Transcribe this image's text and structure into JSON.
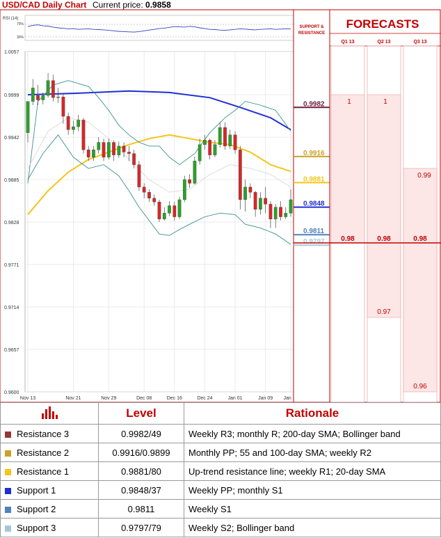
{
  "header": {
    "title": "USD/CAD Daily Chart",
    "price_label": "Current price:",
    "price_value": "0.9858"
  },
  "chart_data": {
    "type": "candlestick",
    "title": "USD/CAD Daily Chart",
    "ylim": [
      0.96,
      1.0057
    ],
    "y_ticks": [
      "1.0057",
      "0.9999",
      "0.9942",
      "0.9885",
      "0.9828",
      "0.9771",
      "0.9714",
      "0.9657",
      "0.9600"
    ],
    "x_ticks": [
      "Nov 13",
      "Nov 21",
      "Nov 29",
      "Dec 08",
      "Dec 16",
      "Dec 24",
      "Jan 01",
      "Jan 09",
      "Jan 17"
    ],
    "grid": true,
    "rsi": {
      "label": "RSI (14)",
      "levels": [
        "70%",
        "30%"
      ]
    },
    "candles": [
      [
        0.9948,
        0.999,
        0.9975,
        0.9935
      ],
      [
        0.999,
        1.0008,
        1.002,
        0.9985
      ],
      [
        0.9998,
        0.9992,
        1.0012,
        0.9985
      ],
      [
        0.9992,
        0.9998,
        1.0002,
        0.9986
      ],
      [
        0.9998,
        1.0018,
        1.0028,
        0.9995
      ],
      [
        1.0018,
        0.9995,
        1.0026,
        0.999
      ],
      [
        0.9995,
        0.9996,
        1.0008,
        0.9988
      ],
      [
        0.9996,
        0.997,
        1.0,
        0.996
      ],
      [
        0.997,
        0.9952,
        0.9975,
        0.9945
      ],
      [
        0.9952,
        0.9956,
        0.9964,
        0.9946
      ],
      [
        0.9956,
        0.9965,
        0.9972,
        0.995
      ],
      [
        0.9965,
        0.9925,
        0.9968,
        0.992
      ],
      [
        0.9925,
        0.9915,
        0.993,
        0.991
      ],
      [
        0.9915,
        0.9925,
        0.993,
        0.991
      ],
      [
        0.9925,
        0.9935,
        0.9942,
        0.992
      ],
      [
        0.9935,
        0.9915,
        0.994,
        0.991
      ],
      [
        0.9915,
        0.9935,
        0.994,
        0.9912
      ],
      [
        0.9935,
        0.9918,
        0.9938,
        0.991
      ],
      [
        0.9918,
        0.993,
        0.9936,
        0.9914
      ],
      [
        0.993,
        0.9922,
        0.9935,
        0.9915
      ],
      [
        0.9922,
        0.992,
        0.993,
        0.991
      ],
      [
        0.992,
        0.9905,
        0.9925,
        0.99
      ],
      [
        0.9905,
        0.9875,
        0.991,
        0.987
      ],
      [
        0.9875,
        0.9868,
        0.988,
        0.986
      ],
      [
        0.9868,
        0.986,
        0.9872,
        0.9855
      ],
      [
        0.986,
        0.9855,
        0.9865,
        0.985
      ],
      [
        0.9855,
        0.9832,
        0.9858,
        0.9828
      ],
      [
        0.9832,
        0.984,
        0.9848,
        0.983
      ],
      [
        0.984,
        0.985,
        0.9856,
        0.9836
      ],
      [
        0.985,
        0.9835,
        0.9855,
        0.983
      ],
      [
        0.9835,
        0.9858,
        0.9862,
        0.9832
      ],
      [
        0.9858,
        0.9885,
        0.989,
        0.9855
      ],
      [
        0.9885,
        0.988,
        0.9892,
        0.9874
      ],
      [
        0.988,
        0.991,
        0.9916,
        0.9878
      ],
      [
        0.991,
        0.9932,
        0.994,
        0.9905
      ],
      [
        0.9932,
        0.9938,
        0.9945,
        0.9925
      ],
      [
        0.9938,
        0.9918,
        0.994,
        0.9912
      ],
      [
        0.9918,
        0.9932,
        0.9938,
        0.9915
      ],
      [
        0.9932,
        0.9955,
        0.9962,
        0.9928
      ],
      [
        0.9955,
        0.993,
        0.9962,
        0.9925
      ],
      [
        0.993,
        0.9945,
        0.9952,
        0.9926
      ],
      [
        0.9945,
        0.9925,
        0.995,
        0.992
      ],
      [
        0.9925,
        0.9858,
        0.993,
        0.9845
      ],
      [
        0.9858,
        0.9875,
        0.9885,
        0.9842
      ],
      [
        0.9875,
        0.9868,
        0.988,
        0.986
      ],
      [
        0.9868,
        0.9845,
        0.987,
        0.9835
      ],
      [
        0.9845,
        0.986,
        0.9868,
        0.9838
      ],
      [
        0.986,
        0.9852,
        0.9875,
        0.984
      ],
      [
        0.9852,
        0.9832,
        0.9856,
        0.982
      ],
      [
        0.9832,
        0.9848,
        0.9852,
        0.982
      ],
      [
        0.9848,
        0.9835,
        0.9856,
        0.983
      ],
      [
        0.9835,
        0.984,
        0.9848,
        0.9832
      ],
      [
        0.984,
        0.9858,
        0.9872,
        0.9835
      ]
    ],
    "indicator_lines": [
      {
        "name": "200-day SMA",
        "color": "#1f2fd0",
        "points": [
          [
            0,
            0.9999
          ],
          [
            10,
            1.0001
          ],
          [
            20,
            1.0004
          ],
          [
            28,
            1.0002
          ],
          [
            36,
            0.9995
          ],
          [
            42,
            0.9982
          ],
          [
            48,
            0.9968
          ],
          [
            52,
            0.9952
          ]
        ]
      },
      {
        "name": "55-day SMA",
        "color": "#f5c518",
        "points": [
          [
            0,
            0.9838
          ],
          [
            4,
            0.987
          ],
          [
            8,
            0.9895
          ],
          [
            12,
            0.9912
          ],
          [
            16,
            0.9922
          ],
          [
            20,
            0.9932
          ],
          [
            24,
            0.994
          ],
          [
            28,
            0.9945
          ],
          [
            32,
            0.994
          ],
          [
            36,
            0.9935
          ],
          [
            40,
            0.9932
          ],
          [
            44,
            0.9922
          ],
          [
            48,
            0.9905
          ],
          [
            52,
            0.9896
          ]
        ]
      },
      {
        "name": "Bollinger upper",
        "color": "#3a8f8f",
        "points": [
          [
            0,
            0.988
          ],
          [
            2,
            0.999
          ],
          [
            5,
            1.0012
          ],
          [
            8,
            1.0018
          ],
          [
            12,
            1.001
          ],
          [
            14,
            0.9995
          ],
          [
            16,
            0.9978
          ],
          [
            18,
            0.9958
          ],
          [
            20,
            0.9945
          ],
          [
            22,
            0.9935
          ],
          [
            24,
            0.993
          ],
          [
            26,
            0.993
          ],
          [
            28,
            0.9915
          ],
          [
            30,
            0.9905
          ],
          [
            33,
            0.992
          ],
          [
            36,
            0.9948
          ],
          [
            39,
            0.9968
          ],
          [
            41,
            0.9978
          ],
          [
            43,
            0.999
          ],
          [
            46,
            0.9985
          ],
          [
            49,
            0.9978
          ],
          [
            52,
            0.995
          ]
        ]
      },
      {
        "name": "Bollinger lower",
        "color": "#3a8f8f",
        "points": [
          [
            0,
            0.9885
          ],
          [
            3,
            0.992
          ],
          [
            6,
            0.9945
          ],
          [
            9,
            0.9915
          ],
          [
            12,
            0.99
          ],
          [
            15,
            0.9905
          ],
          [
            18,
            0.989
          ],
          [
            20,
            0.987
          ],
          [
            22,
            0.9848
          ],
          [
            24,
            0.983
          ],
          [
            26,
            0.9812
          ],
          [
            28,
            0.981
          ],
          [
            30,
            0.9818
          ],
          [
            32,
            0.9825
          ],
          [
            35,
            0.9835
          ],
          [
            38,
            0.984
          ],
          [
            41,
            0.9838
          ],
          [
            43,
            0.9825
          ],
          [
            46,
            0.982
          ],
          [
            49,
            0.9812
          ],
          [
            52,
            0.9798
          ]
        ]
      },
      {
        "name": "Bollinger middle",
        "color": "#d9d9d9",
        "points": [
          [
            0,
            0.99
          ],
          [
            4,
            0.995
          ],
          [
            8,
            0.9968
          ],
          [
            12,
            0.9962
          ],
          [
            16,
            0.994
          ],
          [
            20,
            0.9912
          ],
          [
            24,
            0.9885
          ],
          [
            28,
            0.9868
          ],
          [
            32,
            0.9872
          ],
          [
            36,
            0.9892
          ],
          [
            40,
            0.9905
          ],
          [
            44,
            0.99
          ],
          [
            48,
            0.9892
          ],
          [
            52,
            0.9875
          ]
        ]
      }
    ],
    "price_levels": [
      {
        "value": 0.9982,
        "label": "0.9982",
        "color": "#6d1f3c"
      },
      {
        "value": 0.9916,
        "label": "0.9916",
        "color": "#c9a227"
      },
      {
        "value": 0.9881,
        "label": "0.9881",
        "color": "#f5c518"
      },
      {
        "value": 0.9848,
        "label": "0.9848",
        "color": "#1f2fd0"
      },
      {
        "value": 0.9811,
        "label": "0.9811",
        "color": "#4f81bd"
      },
      {
        "value": 0.9797,
        "label": "0.9797",
        "color": "#a6c8d6"
      }
    ],
    "support_resistance_header": [
      "SUPPORT &",
      "RESISTANCE"
    ],
    "forecasts": {
      "title": "FORECASTS",
      "quarters": [
        {
          "label": "Q1 13",
          "value": 0.9999,
          "above": "1",
          "below": "0.98",
          "low": 0.98
        },
        {
          "label": "Q2 13",
          "value": 0.9999,
          "above": "1",
          "below": "0.98",
          "low": 0.98,
          "min_label": "0.97",
          "min": 0.97
        },
        {
          "label": "Q3 13",
          "above": "0.99",
          "high": 0.99,
          "below": "0.98",
          "low": 0.98,
          "min_label": "0.96",
          "min": 0.96
        }
      ],
      "forecast_line": {
        "value": 0.98,
        "label": "0.98"
      }
    }
  },
  "table": {
    "icon": "bar-chart-icon",
    "col_level": "Level",
    "col_rationale": "Rationale",
    "rows": [
      {
        "name": "Resistance 3",
        "color": "#953735",
        "level": "0.9982/49",
        "rationale": "Weekly R3; monthly R; 200-day SMA; Bollinger band"
      },
      {
        "name": "Resistance 2",
        "color": "#c9a227",
        "level": "0.9916/0.9899",
        "rationale": "Monthly PP; 55 and 100-day SMA; weekly R2"
      },
      {
        "name": "Resistance 1",
        "color": "#f5c518",
        "level": "0.9881/80",
        "rationale": "Up-trend resistance line; weekly R1; 20-day SMA"
      },
      {
        "name": "Support 1",
        "color": "#1f2fd0",
        "level": "0.9848/37",
        "rationale": "Weekly PP; monthly S1"
      },
      {
        "name": "Support 2",
        "color": "#4f81bd",
        "level": "0.9811",
        "rationale": "Weekly S1"
      },
      {
        "name": "Support 3",
        "color": "#a6c8d6",
        "level": "0.9797/79",
        "rationale": "Weekly S2; Bollinger band"
      }
    ]
  }
}
